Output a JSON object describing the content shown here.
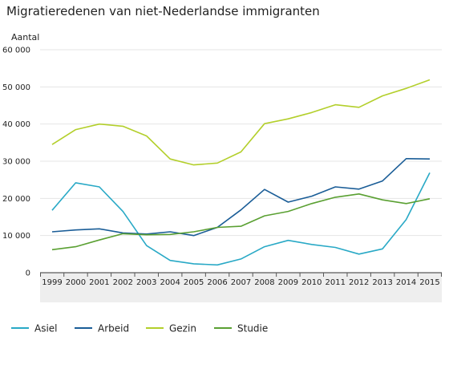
{
  "chart_data": {
    "type": "line",
    "title": "Migratieredenen van niet-Nederlandse immigranten",
    "ylabel": "Aantal",
    "xlabel": "",
    "ylim": [
      0,
      60000
    ],
    "yticks": [
      0,
      10000,
      20000,
      30000,
      40000,
      50000,
      60000
    ],
    "ytick_labels": [
      "0",
      "10 000",
      "20 000",
      "30 000",
      "40 000",
      "50 000",
      "60 000"
    ],
    "x": [
      "1999",
      "2000",
      "2001",
      "2002",
      "2003",
      "2004",
      "2005",
      "2006",
      "2007",
      "2008",
      "2009",
      "2010",
      "2011",
      "2012",
      "2013",
      "2014",
      "2015"
    ],
    "grid": true,
    "legend_position": "bottom",
    "series": [
      {
        "name": "Asiel",
        "color": "#29a9c6",
        "values": [
          16800,
          24200,
          23100,
          16500,
          7300,
          3300,
          2400,
          2100,
          3700,
          7000,
          8700,
          7600,
          6800,
          5000,
          6400,
          14300,
          26900
        ]
      },
      {
        "name": "Arbeid",
        "color": "#1a5d97",
        "values": [
          11000,
          11500,
          11800,
          10700,
          10400,
          11000,
          10000,
          12200,
          16900,
          22400,
          19000,
          20600,
          23100,
          22500,
          24700,
          30700,
          30600
        ]
      },
      {
        "name": "Gezin",
        "color": "#b3cf2b",
        "values": [
          34500,
          38500,
          40000,
          39400,
          36800,
          30600,
          29000,
          29500,
          32500,
          40100,
          41400,
          43100,
          45200,
          44500,
          47600,
          49600,
          51900
        ]
      },
      {
        "name": "Studie",
        "color": "#5aa032",
        "values": [
          6200,
          7000,
          8800,
          10500,
          10200,
          10300,
          11000,
          12200,
          12500,
          15300,
          16500,
          18600,
          20300,
          21200,
          19600,
          18600,
          19900
        ]
      }
    ]
  }
}
